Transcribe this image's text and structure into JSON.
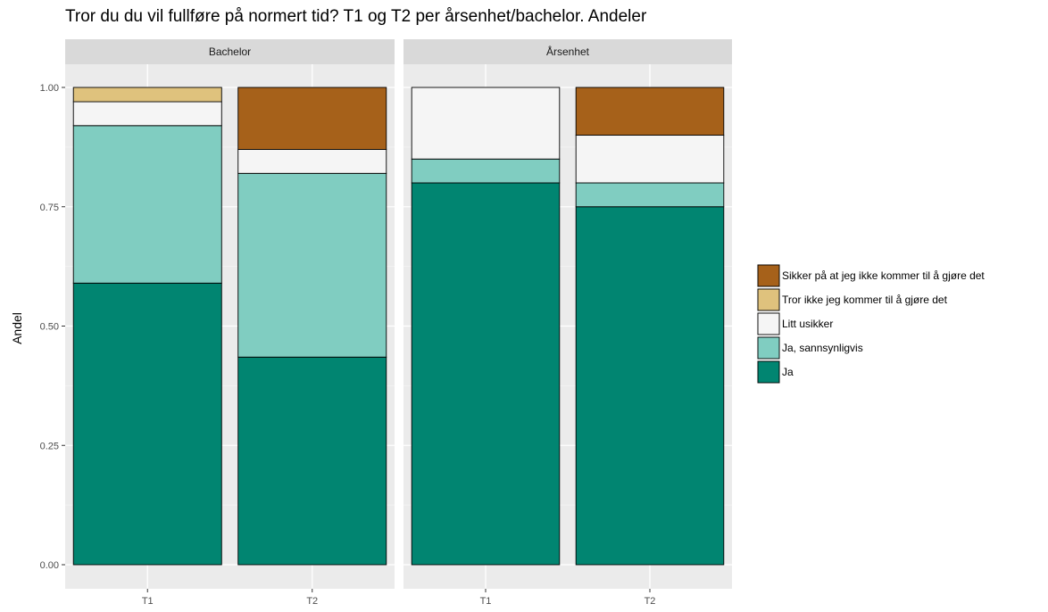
{
  "chart_data": {
    "type": "bar",
    "stacked": true,
    "title": "Tror du du vil fullføre på normert tid? T1 og T2 per årsenhet/bachelor. Andeler",
    "xlabel": "",
    "ylabel": "Andel",
    "ylim": [
      0,
      1
    ],
    "yticks": [
      "0.00",
      "0.25",
      "0.50",
      "0.75",
      "1.00"
    ],
    "grid": true,
    "legend_position": "right",
    "categories": [
      "T1",
      "T2"
    ],
    "legend": [
      {
        "name": "Sikker på at jeg ikke kommer til å gjøre det",
        "color": "#A6611A"
      },
      {
        "name": "Tror ikke jeg kommer til å gjøre det",
        "color": "#DFC27D"
      },
      {
        "name": "Litt usikker",
        "color": "#F5F5F5"
      },
      {
        "name": "Ja, sannsynligvis",
        "color": "#80CDC1"
      },
      {
        "name": "Ja",
        "color": "#018571"
      }
    ],
    "panels": [
      {
        "label": "Bachelor",
        "series": [
          {
            "name": "Ja",
            "values": [
              0.59,
              0.435
            ]
          },
          {
            "name": "Ja, sannsynligvis",
            "values": [
              0.33,
              0.385
            ]
          },
          {
            "name": "Litt usikker",
            "values": [
              0.05,
              0.05
            ]
          },
          {
            "name": "Tror ikke jeg kommer til å gjøre det",
            "values": [
              0.03,
              0
            ]
          },
          {
            "name": "Sikker på at jeg ikke kommer til å gjøre det",
            "values": [
              0,
              0.13
            ]
          }
        ]
      },
      {
        "label": "Årsenhet",
        "series": [
          {
            "name": "Ja",
            "values": [
              0.8,
              0.75
            ]
          },
          {
            "name": "Ja, sannsynligvis",
            "values": [
              0.05,
              0.05
            ]
          },
          {
            "name": "Litt usikker",
            "values": [
              0.15,
              0.1
            ]
          },
          {
            "name": "Tror ikke jeg kommer til å gjøre det",
            "values": [
              0,
              0
            ]
          },
          {
            "name": "Sikker på at jeg ikke kommer til å gjøre det",
            "values": [
              0,
              0.1
            ]
          }
        ]
      }
    ]
  }
}
